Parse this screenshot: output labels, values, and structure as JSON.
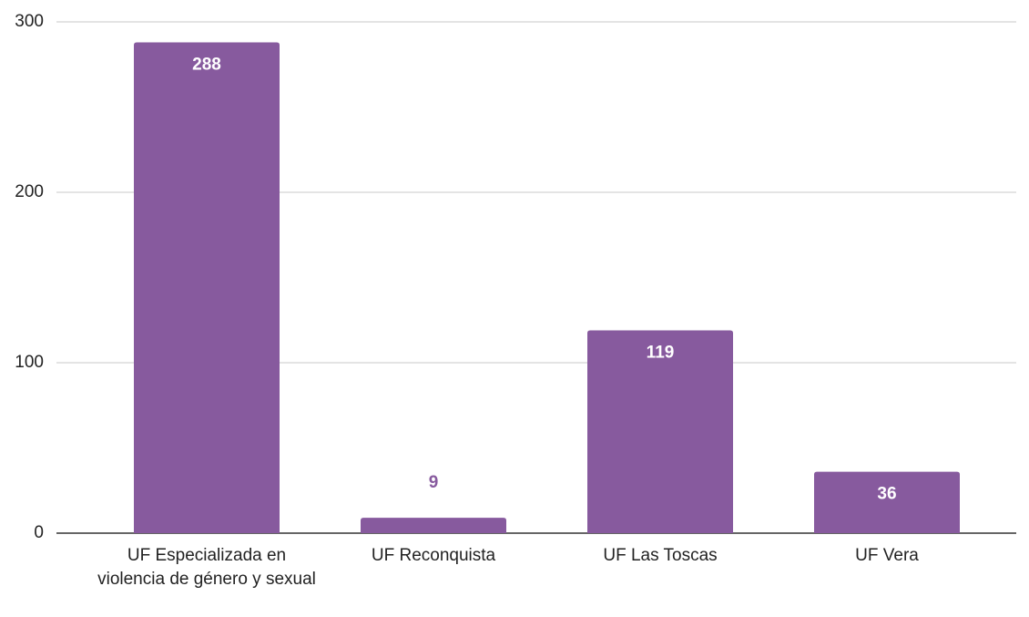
{
  "chart_data": {
    "type": "bar",
    "categories": [
      "UF Especializada en violencia de género y sexual",
      "UF Reconquista",
      "UF Las Toscas",
      "UF Vera"
    ],
    "values": [
      288,
      9,
      119,
      36
    ],
    "color": "#875a9e",
    "ylim": [
      0,
      300
    ],
    "yticks": [
      0,
      100,
      200,
      300
    ],
    "grid": true
  }
}
